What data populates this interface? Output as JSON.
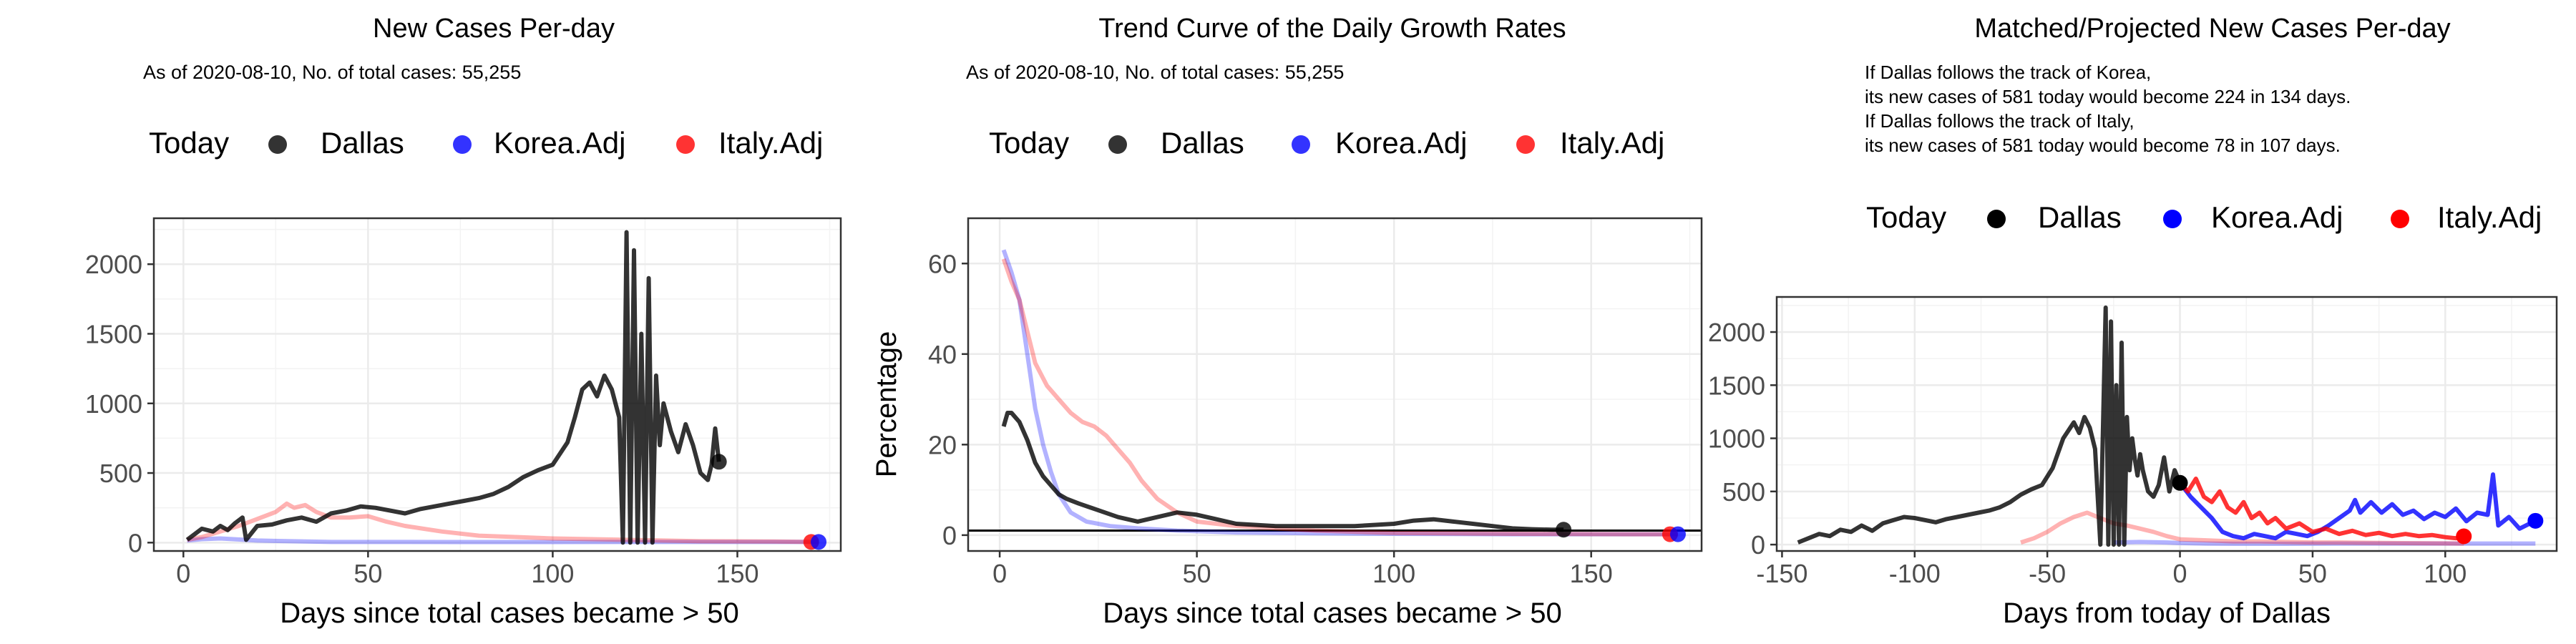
{
  "colors": {
    "dallas": "#000000",
    "korea": "#0000ff",
    "italy": "#ff0000",
    "grid": "#ebebeb",
    "panel_border": "#333333"
  },
  "legend": {
    "title": "Today",
    "items": [
      "Dallas",
      "Korea.Adj",
      "Italy.Adj"
    ]
  },
  "chart_data": [
    {
      "type": "line",
      "title": "New Cases Per-day",
      "subtitle": "As of 2020-08-10, No. of total cases: 55,255",
      "xlabel": "Days since total cases became > 50",
      "ylabel": "",
      "xlim": [
        -8,
        178
      ],
      "ylim": [
        -60,
        2330
      ],
      "xticks": [
        0,
        50,
        100,
        150
      ],
      "yticks": [
        0,
        500,
        1000,
        1500,
        2000
      ],
      "grid": true,
      "legend_position": "top",
      "today_points": [
        {
          "series": "Dallas",
          "x": 145,
          "y": 581
        },
        {
          "series": "Italy.Adj",
          "x": 170,
          "y": 5
        },
        {
          "series": "Korea.Adj",
          "x": 172,
          "y": 5
        }
      ],
      "series": [
        {
          "name": "Korea.Adj",
          "color": "#0000ff",
          "alpha": 0.3,
          "x": [
            1,
            5,
            10,
            20,
            40,
            60,
            80,
            100,
            120,
            140,
            160,
            172
          ],
          "y": [
            15,
            25,
            30,
            15,
            5,
            5,
            4,
            4,
            5,
            5,
            5,
            5
          ]
        },
        {
          "name": "Italy.Adj",
          "color": "#ff0000",
          "alpha": 0.3,
          "x": [
            1,
            5,
            10,
            15,
            20,
            25,
            28,
            30,
            33,
            36,
            40,
            45,
            50,
            55,
            60,
            70,
            80,
            90,
            100,
            120,
            140,
            160,
            170
          ],
          "y": [
            20,
            40,
            80,
            120,
            170,
            220,
            280,
            250,
            270,
            220,
            180,
            180,
            190,
            150,
            120,
            80,
            50,
            40,
            30,
            20,
            10,
            8,
            5
          ]
        },
        {
          "name": "Dallas",
          "color": "#000000",
          "alpha": 0.8,
          "x": [
            1,
            3,
            5,
            8,
            10,
            12,
            14,
            16,
            17,
            20,
            24,
            28,
            32,
            36,
            40,
            44,
            48,
            52,
            56,
            60,
            64,
            68,
            72,
            76,
            80,
            84,
            88,
            92,
            96,
            100,
            104,
            106,
            108,
            110,
            112,
            114,
            116,
            118,
            119,
            120,
            121,
            122,
            123,
            124,
            125,
            126,
            127,
            128,
            129,
            130,
            132,
            134,
            136,
            138,
            140,
            142,
            143,
            144,
            145
          ],
          "y": [
            20,
            60,
            100,
            80,
            120,
            90,
            140,
            180,
            20,
            120,
            130,
            160,
            180,
            150,
            210,
            230,
            260,
            250,
            230,
            210,
            240,
            260,
            280,
            300,
            320,
            350,
            400,
            470,
            520,
            560,
            720,
            900,
            1100,
            1150,
            1050,
            1200,
            1100,
            900,
            0,
            2230,
            0,
            2100,
            0,
            1500,
            0,
            1900,
            0,
            1200,
            700,
            1000,
            800,
            650,
            850,
            700,
            500,
            450,
            560,
            820,
            581
          ]
        }
      ]
    },
    {
      "type": "line",
      "title": "Trend Curve of the Daily Growth Rates",
      "subtitle": "As of 2020-08-10, No. of total cases: 55,255",
      "xlabel": "Days since total cases became > 50",
      "ylabel": "Percentage",
      "xlim": [
        -8,
        178
      ],
      "ylim": [
        -3.5,
        70
      ],
      "xticks": [
        0,
        50,
        100,
        150
      ],
      "yticks": [
        0,
        20,
        40,
        60
      ],
      "grid": true,
      "hline": 1,
      "legend_position": "top",
      "today_points": [
        {
          "series": "Dallas",
          "x": 143,
          "y": 1.2
        },
        {
          "series": "Italy.Adj",
          "x": 170,
          "y": 0.2
        },
        {
          "series": "Korea.Adj",
          "x": 172,
          "y": 0.2
        }
      ],
      "series": [
        {
          "name": "Korea.Adj",
          "color": "#0000ff",
          "alpha": 0.3,
          "x": [
            1,
            3,
            5,
            7,
            9,
            11,
            13,
            15,
            18,
            22,
            28,
            35,
            45,
            60,
            80,
            100,
            130,
            160,
            172
          ],
          "y": [
            63,
            58,
            52,
            40,
            28,
            20,
            14,
            9,
            5,
            3,
            2,
            1.5,
            1,
            0.6,
            0.4,
            0.3,
            0.2,
            0.2,
            0.2
          ]
        },
        {
          "name": "Italy.Adj",
          "color": "#ff0000",
          "alpha": 0.3,
          "x": [
            1,
            3,
            5,
            7,
            9,
            12,
            15,
            18,
            21,
            24,
            27,
            30,
            33,
            36,
            40,
            45,
            50,
            60,
            70,
            80,
            100,
            130,
            160,
            170
          ],
          "y": [
            61,
            56,
            52,
            45,
            38,
            33,
            30,
            27,
            25,
            24,
            22,
            19,
            16,
            12,
            8,
            5,
            3,
            2,
            1.5,
            1,
            0.5,
            0.3,
            0.2,
            0.2
          ]
        },
        {
          "name": "Dallas",
          "color": "#000000",
          "alpha": 0.8,
          "x": [
            1,
            2,
            3,
            5,
            7,
            9,
            11,
            13,
            15,
            17,
            20,
            25,
            30,
            35,
            40,
            45,
            50,
            55,
            60,
            70,
            80,
            90,
            100,
            105,
            110,
            115,
            120,
            125,
            130,
            135,
            140,
            143
          ],
          "y": [
            24,
            27,
            27,
            25,
            21,
            16,
            13,
            11,
            9,
            8,
            7,
            5.5,
            4,
            3,
            4,
            5,
            4.5,
            3.5,
            2.5,
            2,
            2,
            2,
            2.5,
            3.2,
            3.5,
            3,
            2.5,
            2,
            1.5,
            1.3,
            1.2,
            1.2
          ]
        }
      ]
    },
    {
      "type": "line",
      "title": "Matched/Projected New Cases Per-day",
      "annotations": [
        "If Dallas follows the track of Korea,",
        "its new cases of 581 today would become 224 in 134 days.",
        "If Dallas follows the track of Italy,",
        "its new cases of 581 today would become 78 in 107 days."
      ],
      "xlabel": "Days from today of Dallas",
      "ylabel": "",
      "xlim": [
        -152,
        142
      ],
      "ylim": [
        -60,
        2330
      ],
      "xticks": [
        -150,
        -100,
        -50,
        0,
        50,
        100
      ],
      "yticks": [
        0,
        500,
        1000,
        1500,
        2000
      ],
      "grid": true,
      "legend_position": "top",
      "today_points": [
        {
          "series": "Dallas",
          "x": 0,
          "y": 581
        },
        {
          "series": "Italy.Adj",
          "x": 107,
          "y": 78
        },
        {
          "series": "Korea.Adj",
          "x": 134,
          "y": 224
        }
      ],
      "series": [
        {
          "name": "Korea.Adj (history)",
          "color": "#0000ff",
          "alpha": 0.3,
          "x": [
            -25,
            -15,
            -5,
            0,
            10,
            20,
            40,
            60,
            80,
            100,
            120,
            134
          ],
          "y": [
            20,
            25,
            20,
            15,
            10,
            8,
            8,
            10,
            10,
            10,
            10,
            10
          ]
        },
        {
          "name": "Italy.Adj (history)",
          "color": "#ff0000",
          "alpha": 0.3,
          "x": [
            -60,
            -55,
            -50,
            -45,
            -40,
            -35,
            -30,
            -25,
            -20,
            -15,
            -10,
            -5,
            0,
            10,
            20,
            30,
            40,
            50,
            60,
            80,
            107
          ],
          "y": [
            20,
            60,
            120,
            200,
            260,
            300,
            250,
            200,
            180,
            150,
            120,
            80,
            50,
            40,
            30,
            30,
            25,
            20,
            20,
            15,
            10
          ]
        },
        {
          "name": "Dallas",
          "color": "#000000",
          "alpha": 0.8,
          "x": [
            -144,
            -140,
            -136,
            -132,
            -128,
            -124,
            -120,
            -116,
            -112,
            -108,
            -104,
            -100,
            -96,
            -92,
            -88,
            -84,
            -80,
            -76,
            -72,
            -68,
            -64,
            -60,
            -56,
            -52,
            -48,
            -44,
            -40,
            -38,
            -36,
            -34,
            -32,
            -30,
            -28,
            -27,
            -26,
            -25,
            -24,
            -23,
            -22,
            -21,
            -20,
            -19,
            -18,
            -17,
            -16,
            -15,
            -14,
            -12,
            -10,
            -8,
            -6,
            -4,
            -2,
            0
          ],
          "y": [
            20,
            60,
            100,
            80,
            140,
            120,
            180,
            130,
            200,
            230,
            260,
            250,
            230,
            210,
            240,
            260,
            280,
            300,
            320,
            350,
            400,
            470,
            520,
            560,
            720,
            1000,
            1150,
            1050,
            1200,
            1100,
            900,
            0,
            2230,
            0,
            2100,
            0,
            1500,
            0,
            1900,
            0,
            1200,
            700,
            1000,
            800,
            650,
            850,
            700,
            500,
            450,
            560,
            820,
            500,
            700,
            581
          ]
        },
        {
          "name": "Korea.Adj",
          "color": "#0000ff",
          "alpha": 0.8,
          "x": [
            0,
            4,
            8,
            12,
            16,
            20,
            24,
            28,
            32,
            36,
            40,
            44,
            48,
            52,
            56,
            60,
            64,
            66,
            68,
            72,
            76,
            80,
            84,
            88,
            92,
            96,
            100,
            104,
            108,
            112,
            116,
            118,
            120,
            124,
            128,
            132,
            134
          ],
          "y": [
            581,
            450,
            350,
            250,
            120,
            80,
            60,
            100,
            80,
            60,
            120,
            100,
            80,
            120,
            180,
            250,
            320,
            420,
            300,
            400,
            300,
            380,
            280,
            320,
            240,
            300,
            260,
            340,
            220,
            300,
            280,
            660,
            180,
            260,
            150,
            200,
            224
          ]
        },
        {
          "name": "Italy.Adj",
          "color": "#ff0000",
          "alpha": 0.8,
          "x": [
            0,
            3,
            6,
            9,
            12,
            15,
            18,
            21,
            24,
            27,
            30,
            33,
            36,
            40,
            45,
            50,
            55,
            60,
            65,
            70,
            75,
            80,
            85,
            90,
            95,
            100,
            104,
            107
          ],
          "y": [
            581,
            500,
            620,
            450,
            400,
            500,
            350,
            300,
            400,
            250,
            300,
            200,
            250,
            150,
            200,
            120,
            150,
            100,
            130,
            90,
            110,
            80,
            100,
            80,
            90,
            70,
            60,
            78
          ]
        }
      ]
    }
  ]
}
